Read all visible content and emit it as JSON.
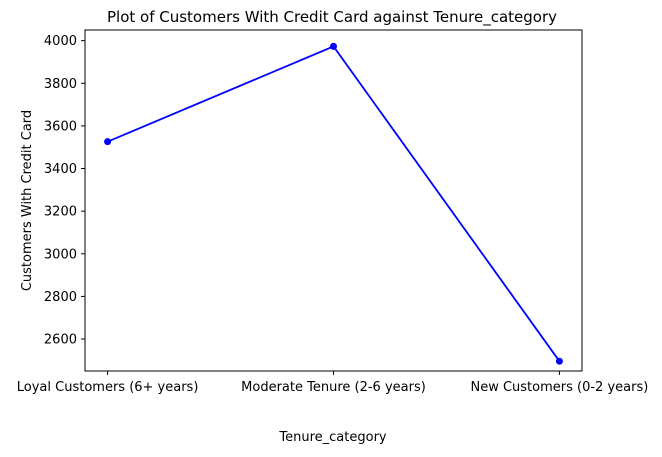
{
  "chart_data": {
    "type": "line",
    "title": "Plot of Customers With Credit Card against Tenure_category",
    "xlabel": "Tenure_category",
    "ylabel": "Customers With Credit Card",
    "categories": [
      "Loyal Customers (6+ years)",
      "Moderate Tenure (2-6 years)",
      "New Customers (0-2 years)"
    ],
    "series": [
      {
        "values": [
          3526,
          3973,
          2496
        ],
        "color": "#0000ff",
        "marker": "circle"
      }
    ],
    "ylim": [
      2450,
      4050
    ],
    "yticks": [
      2600,
      2800,
      3000,
      3200,
      3400,
      3600,
      3800,
      4000
    ],
    "grid": false,
    "legend": "none"
  }
}
